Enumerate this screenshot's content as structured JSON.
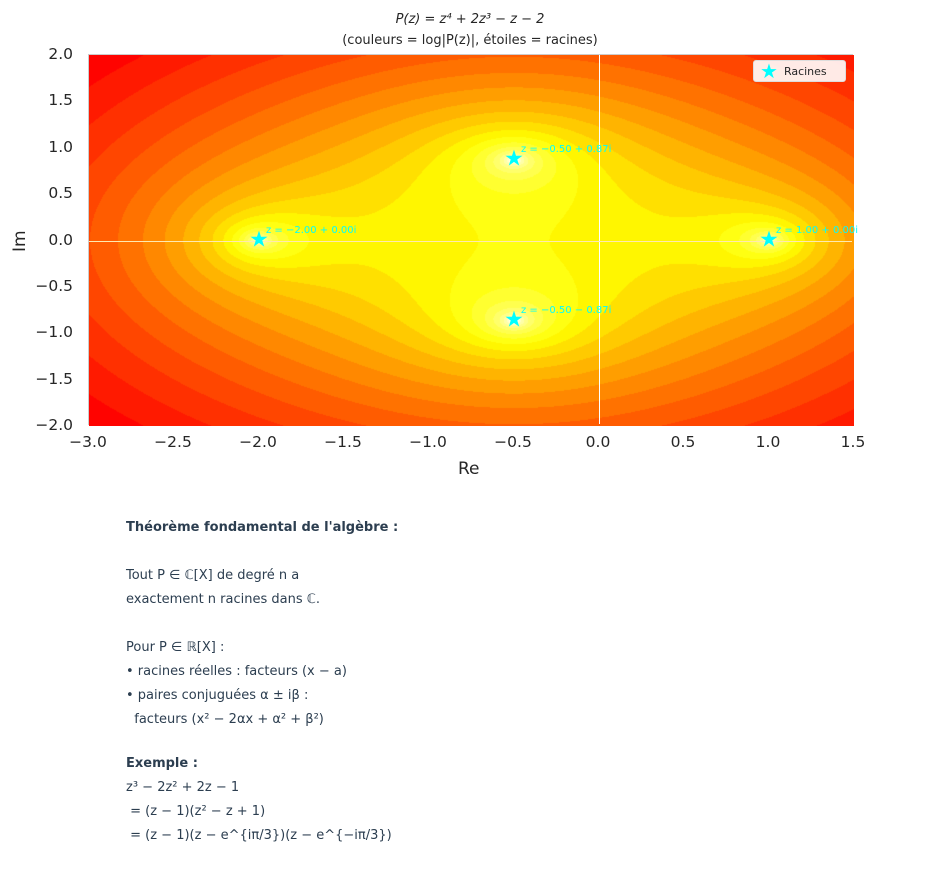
{
  "chart_data": {
    "type": "heatmap",
    "title": "P(z) = z⁴ + 2z³ − z − 2",
    "subtitle": "(couleurs = log|P(z)|, étoiles = racines)",
    "xlabel": "Re",
    "ylabel": "Im",
    "xlim": [
      -3.0,
      1.5
    ],
    "ylim": [
      -2.0,
      2.0
    ],
    "xticks": [
      "−3.0",
      "−2.5",
      "−2.0",
      "−1.5",
      "−1.0",
      "−0.5",
      "0.0",
      "0.5",
      "1.0",
      "1.5"
    ],
    "xtick_values": [
      -3.0,
      -2.5,
      -2.0,
      -1.5,
      -1.0,
      -0.5,
      0.0,
      0.5,
      1.0,
      1.5
    ],
    "yticks": [
      "2.0",
      "1.5",
      "1.0",
      "0.5",
      "0.0",
      "−0.5",
      "−1.0",
      "−1.5",
      "−2.0"
    ],
    "ytick_values": [
      2.0,
      1.5,
      1.0,
      0.5,
      0.0,
      -0.5,
      -1.0,
      -1.5,
      -2.0
    ],
    "polynomial_coefficients": [
      1,
      2,
      0,
      -1,
      -2
    ],
    "colormap": "hot_r",
    "contour_levels": 20,
    "roots": [
      {
        "re": -2.0,
        "im": 0.0,
        "label": "z = −2.00 + 0.00i"
      },
      {
        "re": -0.5,
        "im": 0.866,
        "label": "z = −0.50 + 0.87i"
      },
      {
        "re": -0.5,
        "im": -0.866,
        "label": "z = −0.50 − 0.87i"
      },
      {
        "re": 1.0,
        "im": 0.0,
        "label": "z = 1.00 + 0.00i"
      }
    ],
    "legend": {
      "label": "Racines",
      "placement": "top-right"
    },
    "marker_color": "#00ffff",
    "grid": true
  },
  "notes": {
    "heading": "Théorème fondamental de l'algèbre :",
    "line1": "Tout P ∈ ℂ[X] de degré n a",
    "line2": "exactement n racines dans ℂ.",
    "line3": "Pour P ∈ ℝ[X] :",
    "line4": "• racines réelles : facteurs (x − a)",
    "line5": "• paires conjuguées α ± iβ :",
    "line6": "  facteurs (x² − 2αx + α² + β²)",
    "example_heading": "Exemple :",
    "ex1": "z³ − 2z² + 2z − 1",
    "ex2": " = (z − 1)(z² − z + 1)",
    "ex3": " = (z − 1)(z − e^{iπ/3})(z − e^{−iπ/3})"
  }
}
